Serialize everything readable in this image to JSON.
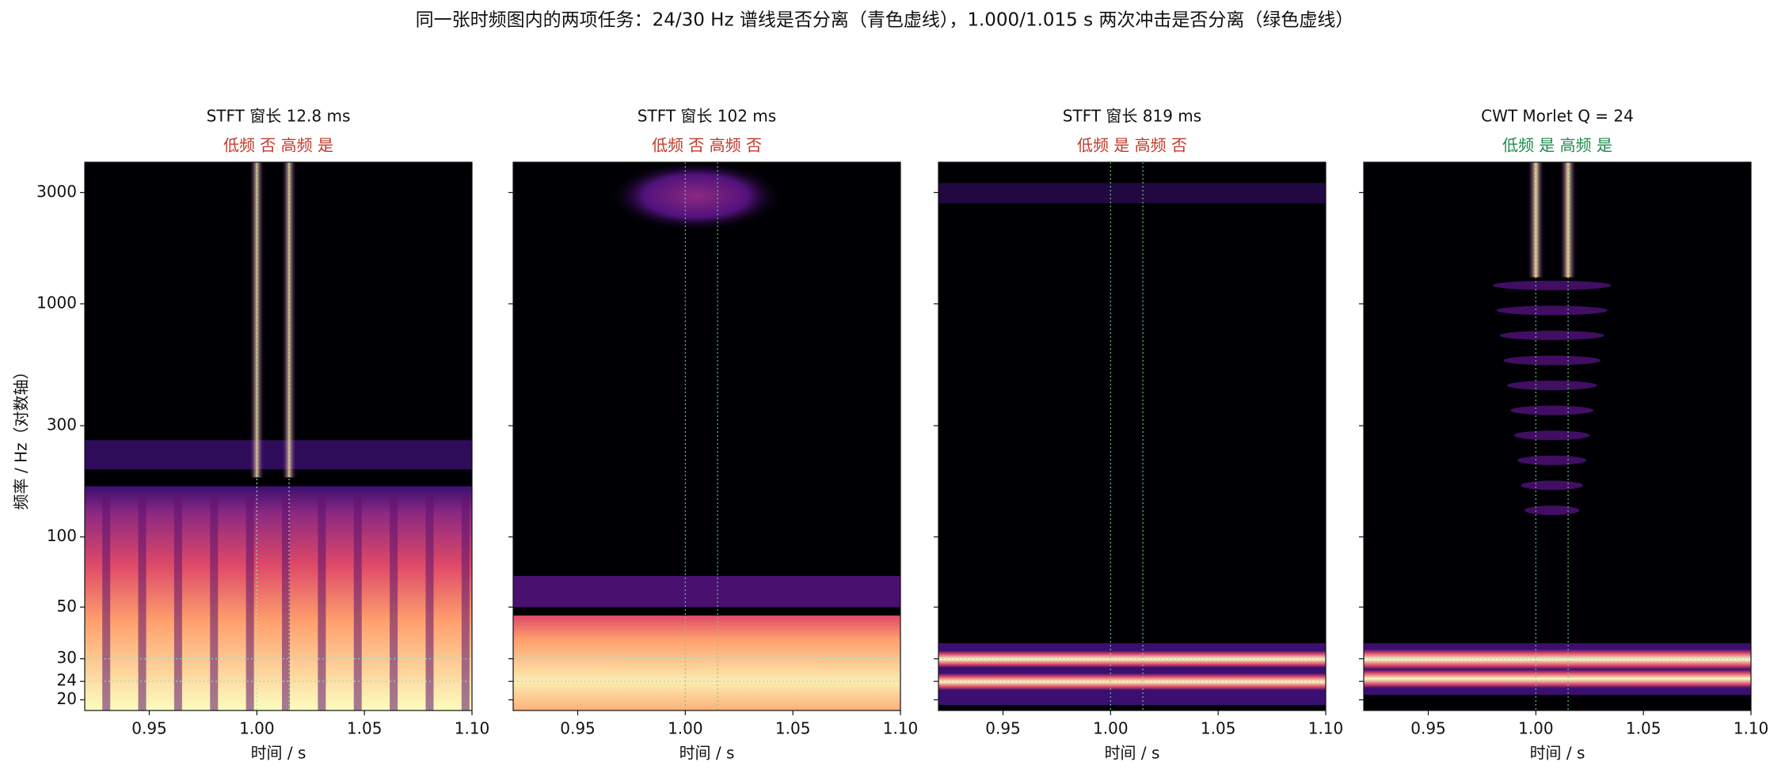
{
  "title": "同一张时频图内的两项任务：24/30 Hz 谱线是否分离（青色虚线），1.000/1.015 s 两次冲击是否分离（绿色虚线）",
  "ylabel": "频率 / Hz（对数轴）",
  "chart_data": [
    {
      "type": "heatmap",
      "title": "STFT  窗长 12.8 ms",
      "subtitle": "低频 否   高频 是",
      "subtitle_color": "#c0392b",
      "xlabel": "时间 / s",
      "xlim": [
        0.92,
        1.1
      ],
      "xticks": [
        0.95,
        {
          "value": 1,
          "label": "1.00"
        },
        1.05,
        {
          "value": 1.1,
          "label": "1.10"
        }
      ],
      "ylim": [
        18,
        4050
      ],
      "yscale": "log",
      "yticks": [
        20,
        24,
        30,
        50,
        100,
        300,
        1000,
        3000
      ],
      "hlines": [
        24,
        30
      ],
      "hline_color": "#7fe5f0",
      "vlines": [
        1,
        1.015
      ],
      "vline_color": "#9ee6c0"
    },
    {
      "type": "heatmap",
      "title": "STFT  窗长 102 ms",
      "subtitle": "低频 否   高频 否",
      "subtitle_color": "#c0392b",
      "xlabel": "时间 / s",
      "xlim": [
        0.92,
        1.1
      ],
      "xticks": [
        0.95,
        {
          "value": 1,
          "label": "1.00"
        },
        1.05,
        {
          "value": 1.1,
          "label": "1.10"
        }
      ],
      "ylim": [
        18,
        4050
      ],
      "yscale": "log",
      "yticks": [
        20,
        24,
        30,
        50,
        100,
        300,
        1000,
        3000
      ],
      "hlines": [
        24,
        30
      ],
      "hline_color": "#7fe5f0",
      "vlines": [
        1,
        1.015
      ],
      "vline_color": "#6fd08a"
    },
    {
      "type": "heatmap",
      "title": "STFT  窗长 819 ms",
      "subtitle": "低频 是   高频 否",
      "subtitle_color": "#c0392b",
      "xlabel": "时间 / s",
      "xlim": [
        0.92,
        1.1
      ],
      "xticks": [
        0.95,
        {
          "value": 1,
          "label": "1.00"
        },
        1.05,
        {
          "value": 1.1,
          "label": "1.10"
        }
      ],
      "ylim": [
        18,
        4050
      ],
      "yscale": "log",
      "yticks": [
        20,
        24,
        30,
        50,
        100,
        300,
        1000,
        3000
      ],
      "hlines": [
        24,
        30
      ],
      "hline_color": "#7fe5f0",
      "vlines": [
        1,
        1.015
      ],
      "vline_color": "#6fd08a"
    },
    {
      "type": "heatmap",
      "title": "CWT  Morlet  Q = 24",
      "subtitle": "低频 是   高频 是",
      "subtitle_color": "#1e8a4a",
      "xlabel": "时间 / s",
      "xlim": [
        0.92,
        1.1
      ],
      "xticks": [
        0.95,
        {
          "value": 1,
          "label": "1.00"
        },
        1.05,
        {
          "value": 1.1,
          "label": "1.10"
        }
      ],
      "ylim": [
        18,
        4050
      ],
      "yscale": "log",
      "yticks": [
        20,
        24,
        30,
        50,
        100,
        300,
        1000,
        3000
      ],
      "hlines": [
        24,
        30
      ],
      "hline_color": "#7fe5f0",
      "vlines": [
        1,
        1.015
      ],
      "vline_color": "#6fd08a"
    }
  ]
}
